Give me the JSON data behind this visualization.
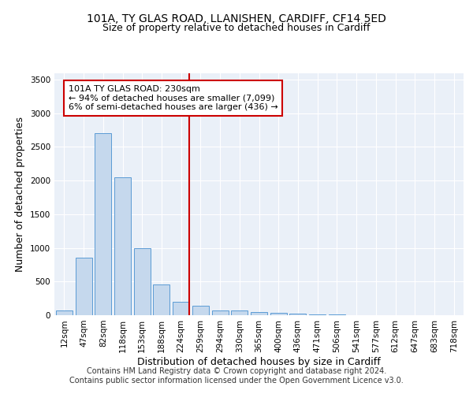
{
  "title_line1": "101A, TY GLAS ROAD, LLANISHEN, CARDIFF, CF14 5ED",
  "title_line2": "Size of property relative to detached houses in Cardiff",
  "xlabel": "Distribution of detached houses by size in Cardiff",
  "ylabel": "Number of detached properties",
  "bar_labels": [
    "12sqm",
    "47sqm",
    "82sqm",
    "118sqm",
    "153sqm",
    "188sqm",
    "224sqm",
    "259sqm",
    "294sqm",
    "330sqm",
    "365sqm",
    "400sqm",
    "436sqm",
    "471sqm",
    "506sqm",
    "541sqm",
    "577sqm",
    "612sqm",
    "647sqm",
    "683sqm",
    "718sqm"
  ],
  "bar_values": [
    75,
    850,
    2700,
    2050,
    1000,
    460,
    200,
    140,
    75,
    65,
    50,
    35,
    25,
    15,
    8,
    5,
    3,
    2,
    1,
    1,
    0
  ],
  "bar_color": "#c5d8ed",
  "bar_edge_color": "#5b9bd5",
  "marker_color": "#cc0000",
  "annotation_line1": "101A TY GLAS ROAD: 230sqm",
  "annotation_line2": "← 94% of detached houses are smaller (7,099)",
  "annotation_line3": "6% of semi-detached houses are larger (436) →",
  "annotation_box_color": "#ffffff",
  "annotation_box_edge": "#cc0000",
  "ylim": [
    0,
    3600
  ],
  "yticks": [
    0,
    500,
    1000,
    1500,
    2000,
    2500,
    3000,
    3500
  ],
  "background_color": "#eaf0f8",
  "footer": "Contains HM Land Registry data © Crown copyright and database right 2024.\nContains public sector information licensed under the Open Government Licence v3.0.",
  "title_fontsize": 10,
  "subtitle_fontsize": 9,
  "axis_label_fontsize": 9,
  "tick_fontsize": 7.5,
  "annotation_fontsize": 8,
  "footer_fontsize": 7
}
